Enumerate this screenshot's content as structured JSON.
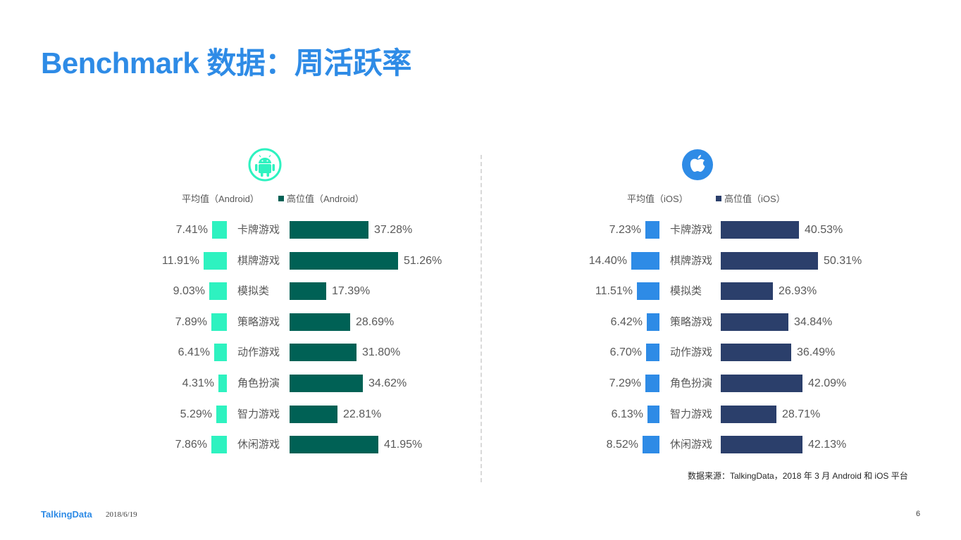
{
  "title": "Benchmark 数据：周活跃率",
  "source_note": "数据来源：TalkingData，2018 年 3 月 Android 和 iOS 平台",
  "footer": {
    "logo": "TalkingData",
    "date": "2018/6/19",
    "page": "6"
  },
  "icons": {
    "android": "android-icon",
    "ios": "apple-icon"
  },
  "chart_data": [
    {
      "type": "bar",
      "platform": "Android",
      "categories": [
        "卡牌游戏",
        "棋牌游戏",
        "模拟类",
        "策略游戏",
        "动作游戏",
        "角色扮演",
        "智力游戏",
        "休闲游戏"
      ],
      "series": [
        {
          "name": "平均值（Android）",
          "color": "#2ef2c0",
          "values": [
            7.41,
            11.91,
            9.03,
            7.89,
            6.41,
            4.31,
            5.29,
            7.86
          ],
          "labels": [
            "7.41%",
            "11.91%",
            "9.03%",
            "7.89%",
            "6.41%",
            "4.31%",
            "5.29%",
            "7.86%"
          ]
        },
        {
          "name": "高位值（Android）",
          "color": "#006155",
          "values": [
            37.28,
            51.26,
            17.39,
            28.69,
            31.8,
            34.62,
            22.81,
            41.95
          ],
          "labels": [
            "37.28%",
            "51.26%",
            "17.39%",
            "28.69%",
            "31.80%",
            "34.62%",
            "22.81%",
            "41.95%"
          ]
        }
      ]
    },
    {
      "type": "bar",
      "platform": "iOS",
      "categories": [
        "卡牌游戏",
        "棋牌游戏",
        "模拟类",
        "策略游戏",
        "动作游戏",
        "角色扮演",
        "智力游戏",
        "休闲游戏"
      ],
      "series": [
        {
          "name": "平均值（iOS）",
          "color": "#2e8be6",
          "values": [
            7.23,
            14.4,
            11.51,
            6.42,
            6.7,
            7.29,
            6.13,
            8.52
          ],
          "labels": [
            "7.23%",
            "14.40%",
            "11.51%",
            "6.42%",
            "6.70%",
            "7.29%",
            "6.13%",
            "8.52%"
          ]
        },
        {
          "name": "高位值（iOS）",
          "color": "#2b3f6b",
          "values": [
            40.53,
            50.31,
            26.93,
            34.84,
            36.49,
            42.09,
            28.71,
            42.13
          ],
          "labels": [
            "40.53%",
            "50.31%",
            "26.93%",
            "34.84%",
            "36.49%",
            "42.09%",
            "28.71%",
            "42.13%"
          ]
        }
      ]
    }
  ]
}
